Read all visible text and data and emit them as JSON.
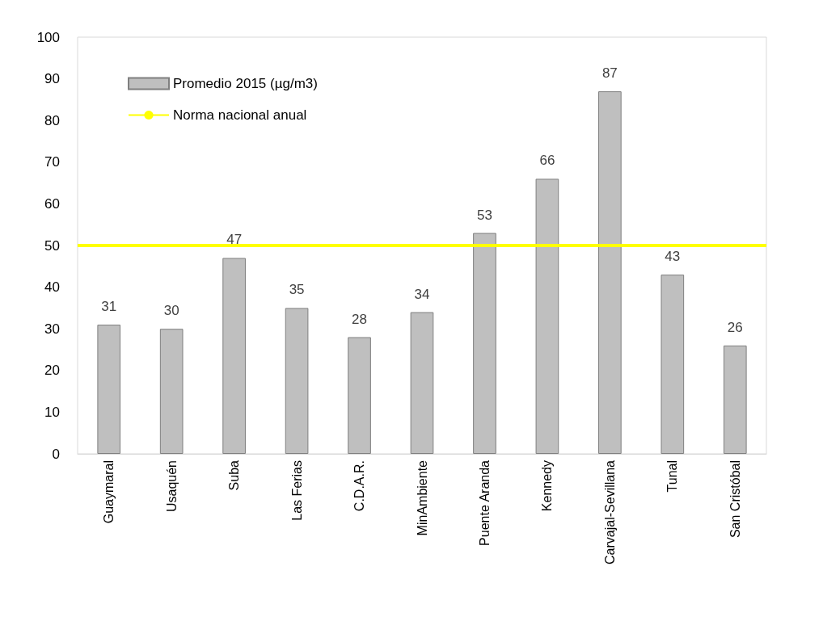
{
  "chart_data": {
    "type": "bar",
    "categories": [
      "Guaymaral",
      "Usaquén",
      "Suba",
      "Las Ferias",
      "C.D.A.R.",
      "MinAmbiente",
      "Puente Aranda",
      "Kennedy",
      "Carvajal-Sevillana",
      "Tunal",
      "San Cristóbal"
    ],
    "series": [
      {
        "name": "Promedio 2015 (µg/m3)",
        "color": "#bfbfbf",
        "values": [
          31,
          30,
          47,
          35,
          28,
          34,
          53,
          66,
          87,
          43,
          26
        ]
      }
    ],
    "ylim": [
      0,
      100
    ],
    "yticks": [
      0,
      10,
      20,
      30,
      40,
      50,
      60,
      70,
      80,
      90,
      100
    ],
    "ref_lines": [
      {
        "axis": "y",
        "value": 50,
        "label": "Norma nacional anual",
        "color": "#ffff00",
        "line_style": "solid"
      }
    ],
    "data_labels": true,
    "grid": false,
    "legend": "top left"
  }
}
